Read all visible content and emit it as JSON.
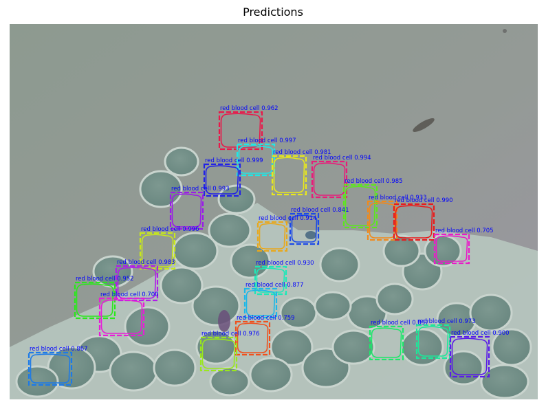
{
  "figure": {
    "title": "Predictions"
  },
  "colors": {
    "label_text": "#0000ff",
    "stain_bg": "#8a9a92",
    "cell_fill": "#6f8d86",
    "membrane": "#c7d3cc"
  },
  "detections": [
    {
      "label": "red blood cell 0.962",
      "score": 0.962,
      "color": "#e8194a"
    },
    {
      "label": "red blood cell 0.997",
      "score": 0.997,
      "color": "#1ee8e8"
    },
    {
      "label": "red blood cell 0.999",
      "score": 0.999,
      "color": "#2222e6"
    },
    {
      "label": "red blood cell 0.981",
      "score": 0.981,
      "color": "#e8e81c"
    },
    {
      "label": "red blood cell 0.994",
      "score": 0.994,
      "color": "#e81c7a"
    },
    {
      "label": "red blood cell 0.993",
      "score": 0.993,
      "color": "#9a1ce8"
    },
    {
      "label": "red blood cell 0.985",
      "score": 0.985,
      "color": "#5ce81c"
    },
    {
      "label": "red blood cell 0.933",
      "score": 0.933,
      "color": "#f08a1c"
    },
    {
      "label": "red blood cell 0.990",
      "score": 0.99,
      "color": "#e81c1c"
    },
    {
      "label": "red blood cell 0.841",
      "score": 0.841,
      "color": "#1c4ae8"
    },
    {
      "label": "red blood cell 0.914",
      "score": 0.914,
      "color": "#e8a81c"
    },
    {
      "label": "red blood cell 0.996",
      "score": 0.996,
      "color": "#c8e81c"
    },
    {
      "label": "red blood cell 0.705",
      "score": 0.705,
      "color": "#e81cc8"
    },
    {
      "label": "red blood cell 0.983",
      "score": 0.983,
      "color": "#b01ce8"
    },
    {
      "label": "red blood cell 0.930",
      "score": 0.93,
      "color": "#1ce8b8"
    },
    {
      "label": "red blood cell 0.952",
      "score": 0.952,
      "color": "#2ae81c"
    },
    {
      "label": "red blood cell 0.700",
      "score": 0.7,
      "color": "#e81cd8"
    },
    {
      "label": "red blood cell 0.877",
      "score": 0.877,
      "color": "#1cb8e8"
    },
    {
      "label": "red blood cell 0.759",
      "score": 0.759,
      "color": "#f0501c"
    },
    {
      "label": "red blood cell 0.976",
      "score": 0.976,
      "color": "#9ae81c"
    },
    {
      "label": "red blood cell 0.867",
      "score": 0.867,
      "color": "#1c7ae8"
    },
    {
      "label": "red blood cell 0.837",
      "score": 0.837,
      "color": "#1ce86a"
    },
    {
      "label": "red blood cell 0.973",
      "score": 0.973,
      "color": "#1ce89a"
    },
    {
      "label": "red blood cell 0.900",
      "score": 0.9,
      "color": "#5a1ce8"
    }
  ]
}
